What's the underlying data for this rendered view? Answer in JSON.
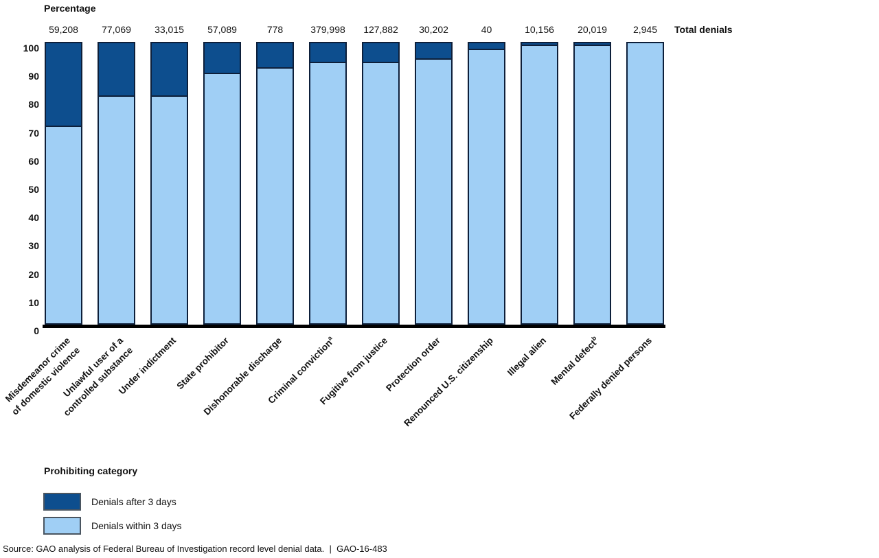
{
  "header": {
    "ylabel": "Percentage",
    "total_denials_label": "Total denials"
  },
  "footer": {
    "xlabel": "Prohibiting category",
    "source": "Source: GAO analysis of Federal Bureau of Investigation record level denial data.  |  GAO-16-483"
  },
  "legend": {
    "title": "Prohibiting category",
    "items": [
      {
        "label": "Denials after 3 days",
        "color": "#0d4e8e"
      },
      {
        "label": "Denials within 3 days",
        "color": "#a0cff5"
      }
    ]
  },
  "colors": {
    "after_fill": "#0d4e8e",
    "within_fill": "#a0cff5",
    "bar_border": "#0d1f3a",
    "axis": "#000000",
    "legend_border": "#4a5560"
  },
  "chart_data": {
    "type": "bar",
    "stacked": true,
    "orientation": "vertical",
    "title": "",
    "ylabel": "Percentage",
    "xlabel": "Prohibiting category",
    "ylim": [
      0,
      100
    ],
    "yticks": [
      0,
      10,
      20,
      30,
      40,
      50,
      60,
      70,
      80,
      90,
      100
    ],
    "grid": false,
    "legend_position": "bottom-left",
    "categories": [
      "Misdemeanor crime\nof domestic violence",
      "Unlawful user of a\ncontrolled substance",
      "Under indictment",
      "State prohibitor",
      "Dishonorable discharge",
      "Criminal conviction",
      "Fugitive from justice",
      "Protection order",
      "Renounced U.S. citizenship",
      "Illegal alien",
      "Mental defect",
      "Federally denied persons"
    ],
    "category_superscripts": [
      "",
      "",
      "",
      "",
      "",
      "a",
      "",
      "",
      "",
      "",
      "b",
      ""
    ],
    "total_denials": [
      "59,208",
      "77,069",
      "33,015",
      "57,089",
      "778",
      "379,998",
      "127,882",
      "30,202",
      "40",
      "10,156",
      "20,019",
      "2,945"
    ],
    "series": [
      {
        "name": "Denials within 3 days",
        "color": "#a0cff5",
        "values": [
          70,
          81,
          81,
          89,
          91,
          93,
          93,
          94,
          97.5,
          99,
          99,
          100
        ]
      },
      {
        "name": "Denials after 3 days",
        "color": "#0d4e8e",
        "values": [
          30,
          19,
          19,
          11,
          9,
          7,
          7,
          6,
          2.5,
          1,
          1,
          0
        ]
      }
    ]
  }
}
